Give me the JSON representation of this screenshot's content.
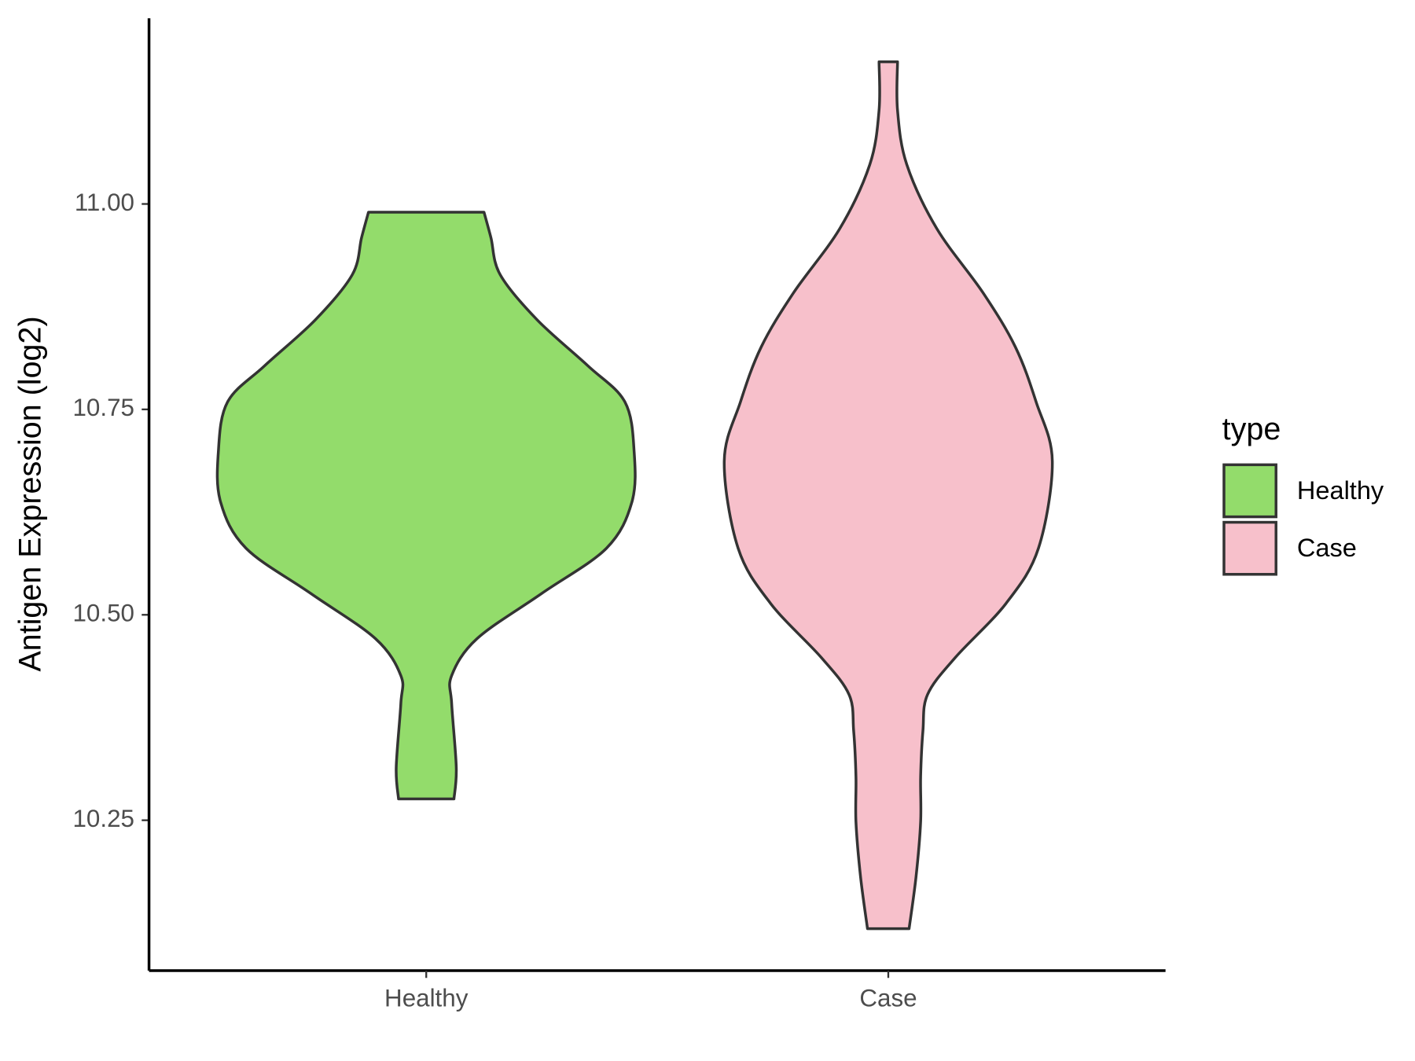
{
  "chart_data": {
    "type": "violin",
    "y_label": "Antigen Expression (log2)",
    "categories": [
      "Healthy",
      "Case"
    ],
    "legend_title": "type",
    "legend_position": "right",
    "ylim": [
      10.067,
      11.226
    ],
    "yticks": [
      {
        "value": 10.25,
        "label": "10.25"
      },
      {
        "value": 10.5,
        "label": "10.50"
      },
      {
        "value": 10.75,
        "label": "10.75"
      },
      {
        "value": 11,
        "label": "11.00"
      }
    ],
    "grid": false,
    "series": [
      {
        "name": "Healthy",
        "color": "#93dc6b",
        "y": [
          10.276,
          10.314,
          10.392,
          10.426,
          10.471,
          10.526,
          10.581,
          10.637,
          10.698,
          10.759,
          10.803,
          10.859,
          10.914,
          10.959,
          10.99
        ],
        "widths": [
          0.12,
          0.13,
          0.11,
          0.11,
          0.22,
          0.5,
          0.78,
          0.89,
          0.9,
          0.86,
          0.7,
          0.48,
          0.32,
          0.28,
          0.25
        ]
      },
      {
        "name": "Case",
        "color": "#f7c0cb",
        "y": [
          10.118,
          10.181,
          10.248,
          10.303,
          10.359,
          10.403,
          10.448,
          10.514,
          10.581,
          10.687,
          10.759,
          10.826,
          10.892,
          10.97,
          11.048,
          11.114,
          11.173
        ],
        "widths": [
          0.09,
          0.12,
          0.14,
          0.14,
          0.15,
          0.17,
          0.29,
          0.51,
          0.65,
          0.71,
          0.64,
          0.55,
          0.41,
          0.21,
          0.08,
          0.04,
          0.04
        ]
      }
    ]
  }
}
